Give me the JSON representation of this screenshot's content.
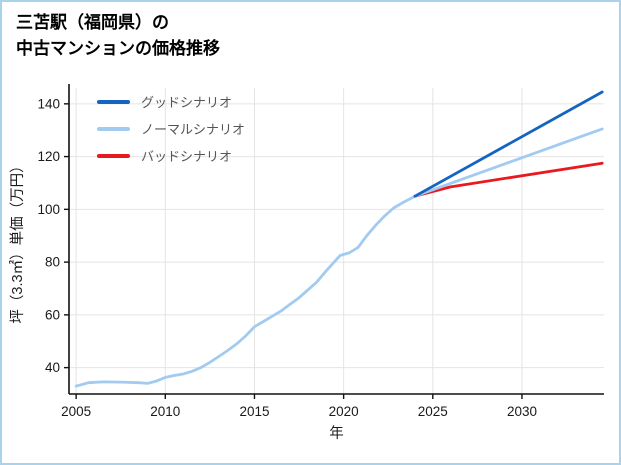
{
  "page": {
    "border_color": "#a9d2ec",
    "background": "#ffffff"
  },
  "title": {
    "lines": [
      "三苫駅（福岡県）の",
      "中古マンションの価格推移"
    ]
  },
  "chart_data": {
    "type": "line",
    "title": "三苫駅（福岡県）の中古マンションの価格推移",
    "xlabel": "年",
    "ylabel": "坪（3.3㎡）単価（万円）",
    "xlim": [
      2004.6,
      2034.6
    ],
    "ylim": [
      30,
      146
    ],
    "xticks": [
      2005,
      2010,
      2015,
      2020,
      2025,
      2030
    ],
    "yticks": [
      40,
      60,
      80,
      100,
      120,
      140
    ],
    "grid": true,
    "grid_color": "#e4e4e4",
    "axis_color": "#111111",
    "legend_position": "upper-left-inside",
    "series": [
      {
        "name": "グッドシナリオ",
        "color": "#1565c0",
        "in_legend": true,
        "points": [
          [
            2024,
            105
          ],
          [
            2034.5,
            144.5
          ]
        ]
      },
      {
        "name": "ノーマルシナリオ",
        "color": "#a2cbf1",
        "in_legend": true,
        "points": [
          [
            2024,
            105
          ],
          [
            2034.5,
            130.5
          ]
        ]
      },
      {
        "name": "バッドシナリオ",
        "color": "#e8191f",
        "in_legend": true,
        "points": [
          [
            2024,
            105
          ],
          [
            2026,
            108.5
          ],
          [
            2034.5,
            117.5
          ]
        ]
      },
      {
        "name": "historical",
        "color": "#a2cbf1",
        "in_legend": false,
        "points": [
          [
            2005,
            33
          ],
          [
            2005.7,
            34.3
          ],
          [
            2006.5,
            34.6
          ],
          [
            2007.5,
            34.5
          ],
          [
            2008.5,
            34.3
          ],
          [
            2009,
            34
          ],
          [
            2009.5,
            34.9
          ],
          [
            2010,
            36.3
          ],
          [
            2010.5,
            37
          ],
          [
            2011,
            37.6
          ],
          [
            2011.5,
            38.6
          ],
          [
            2012,
            40
          ],
          [
            2012.5,
            42
          ],
          [
            2013,
            44.2
          ],
          [
            2013.5,
            46.5
          ],
          [
            2014,
            49
          ],
          [
            2014.5,
            52
          ],
          [
            2015,
            55.5
          ],
          [
            2015.5,
            57.5
          ],
          [
            2016,
            59.5
          ],
          [
            2016.5,
            61.5
          ],
          [
            2017,
            64
          ],
          [
            2017.5,
            66.5
          ],
          [
            2018,
            69.5
          ],
          [
            2018.5,
            72.5
          ],
          [
            2019,
            76.5
          ],
          [
            2019.4,
            79.5
          ],
          [
            2019.8,
            82.5
          ],
          [
            2020.3,
            83.5
          ],
          [
            2020.8,
            85.5
          ],
          [
            2021.3,
            90
          ],
          [
            2021.8,
            94
          ],
          [
            2022.3,
            97.5
          ],
          [
            2022.8,
            100.5
          ],
          [
            2023.3,
            102.5
          ],
          [
            2024,
            105
          ]
        ]
      }
    ]
  }
}
